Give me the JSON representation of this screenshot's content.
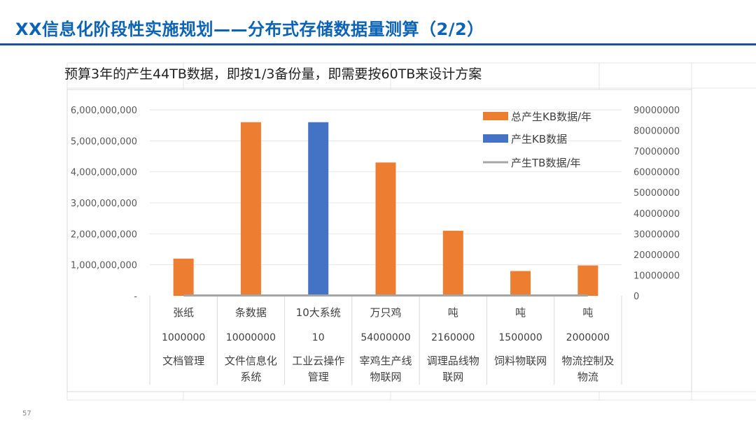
{
  "slide": {
    "title": "XX信息化阶段性实施规划——分布式存储数据量测算（2/2）",
    "page_number": "57"
  },
  "chart_data": {
    "type": "bar",
    "title": "预算3年的产生44TB数据，即按1/3备份量，即需要按60TB来设计方案",
    "categories": [
      [
        "张纸",
        "1000000",
        "文档管理"
      ],
      [
        "条数据",
        "10000000",
        "文件信息化系统"
      ],
      [
        "10大系统",
        "10",
        "工业云操作管理"
      ],
      [
        "万只鸡",
        "54000000",
        "宰鸡生产线物联网"
      ],
      [
        "吨",
        "2160000",
        "调理品线物联网"
      ],
      [
        "吨",
        "1500000",
        "饲料物联网"
      ],
      [
        "吨",
        "2000000",
        "物流控制及物流"
      ]
    ],
    "series": [
      {
        "name": "总产生KB数据/年",
        "axis": "left",
        "color": "#ed7d31",
        "values": [
          1200000000,
          5600000000,
          null,
          4300000000,
          2100000000,
          800000000,
          980000000
        ]
      },
      {
        "name": "产生KB数据",
        "axis": "right",
        "color": "#4472c4",
        "values": [
          null,
          null,
          84000000,
          null,
          null,
          null,
          null
        ]
      },
      {
        "name": "产生TB数据/年",
        "axis": "left",
        "color": "#a5a5a5",
        "kind": "line",
        "values": [
          0,
          0,
          0,
          0,
          0,
          0,
          0
        ]
      }
    ],
    "ylim": [
      0,
      6000000000
    ],
    "y_ticks": [
      "-",
      "1,000,000,000",
      "2,000,000,000",
      "3,000,000,000",
      "4,000,000,000",
      "5,000,000,000",
      "6,000,000,000"
    ],
    "y2lim": [
      0,
      90000000
    ],
    "y2_ticks": [
      "0",
      "10000000",
      "20000000",
      "30000000",
      "40000000",
      "50000000",
      "60000000",
      "70000000",
      "80000000",
      "90000000"
    ],
    "legend_position": "top-right",
    "grid": true
  }
}
